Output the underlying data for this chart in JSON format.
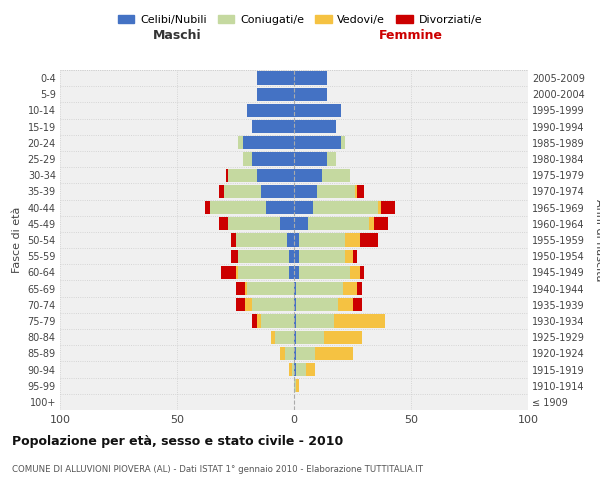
{
  "age_groups": [
    "100+",
    "95-99",
    "90-94",
    "85-89",
    "80-84",
    "75-79",
    "70-74",
    "65-69",
    "60-64",
    "55-59",
    "50-54",
    "45-49",
    "40-44",
    "35-39",
    "30-34",
    "25-29",
    "20-24",
    "15-19",
    "10-14",
    "5-9",
    "0-4"
  ],
  "birth_years": [
    "≤ 1909",
    "1910-1914",
    "1915-1919",
    "1920-1924",
    "1925-1929",
    "1930-1934",
    "1935-1939",
    "1940-1944",
    "1945-1949",
    "1950-1954",
    "1955-1959",
    "1960-1964",
    "1965-1969",
    "1970-1974",
    "1975-1979",
    "1980-1984",
    "1985-1989",
    "1990-1994",
    "1995-1999",
    "2000-2004",
    "2005-2009"
  ],
  "male": {
    "celibi": [
      0,
      0,
      0,
      0,
      0,
      0,
      0,
      0,
      2,
      2,
      3,
      6,
      12,
      14,
      16,
      18,
      22,
      18,
      20,
      16,
      16
    ],
    "coniugati": [
      0,
      0,
      1,
      4,
      8,
      14,
      18,
      20,
      22,
      22,
      22,
      22,
      24,
      16,
      12,
      4,
      2,
      0,
      0,
      0,
      0
    ],
    "vedovi": [
      0,
      0,
      1,
      2,
      2,
      2,
      3,
      1,
      1,
      0,
      0,
      0,
      0,
      0,
      0,
      0,
      0,
      0,
      0,
      0,
      0
    ],
    "divorziati": [
      0,
      0,
      0,
      0,
      0,
      2,
      4,
      4,
      6,
      3,
      2,
      4,
      2,
      2,
      1,
      0,
      0,
      0,
      0,
      0,
      0
    ]
  },
  "female": {
    "nubili": [
      0,
      0,
      1,
      1,
      1,
      1,
      1,
      1,
      2,
      2,
      2,
      6,
      8,
      10,
      12,
      14,
      20,
      18,
      20,
      14,
      14
    ],
    "coniugate": [
      0,
      1,
      4,
      8,
      12,
      16,
      18,
      20,
      22,
      20,
      20,
      26,
      28,
      16,
      12,
      4,
      2,
      0,
      0,
      0,
      0
    ],
    "vedove": [
      0,
      1,
      4,
      16,
      16,
      22,
      6,
      6,
      4,
      3,
      6,
      2,
      1,
      1,
      0,
      0,
      0,
      0,
      0,
      0,
      0
    ],
    "divorziate": [
      0,
      0,
      0,
      0,
      0,
      0,
      4,
      2,
      2,
      2,
      8,
      6,
      6,
      3,
      0,
      0,
      0,
      0,
      0,
      0,
      0
    ]
  },
  "colors": {
    "celibi": "#4472c4",
    "coniugati": "#c5d9a0",
    "vedovi": "#f5c242",
    "divorziati": "#cc0000"
  },
  "legend_labels": [
    "Celibi/Nubili",
    "Coniugati/e",
    "Vedovi/e",
    "Divorziati/e"
  ],
  "title": "Popolazione per età, sesso e stato civile - 2010",
  "subtitle": "COMUNE DI ALLUVIONI PIOVERA (AL) - Dati ISTAT 1° gennaio 2010 - Elaborazione TUTTITALIA.IT",
  "xlabel_left": "Maschi",
  "xlabel_right": "Femmine",
  "ylabel_left": "Fasce di età",
  "ylabel_right": "Anni di nascita",
  "xlim": 100,
  "bg_color": "#ffffff",
  "plot_bg": "#f0f0f0",
  "grid_color": "#cccccc"
}
